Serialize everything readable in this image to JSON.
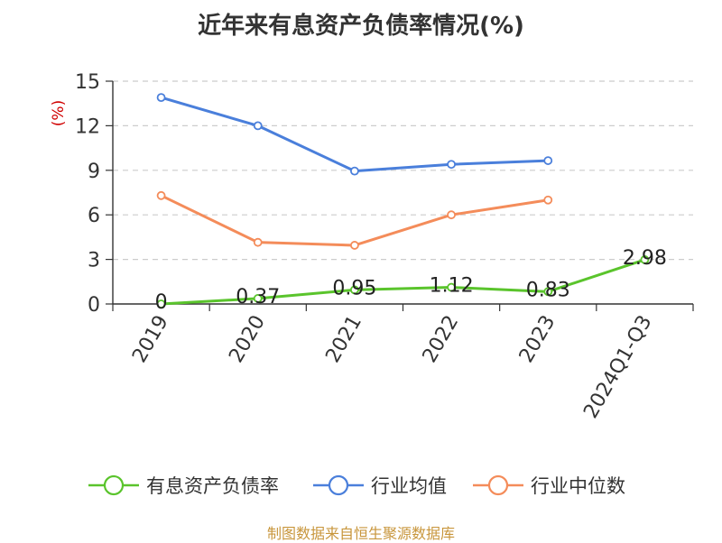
{
  "chart_data": {
    "type": "line",
    "title": "近年来有息资产负债率情况(%)",
    "ylabel": "(%)",
    "xlabel": "",
    "categories": [
      "2019",
      "2020",
      "2021",
      "2022",
      "2023",
      "2024Q1-Q3"
    ],
    "ylim": [
      0,
      15
    ],
    "yticks": [
      0,
      3,
      6,
      9,
      12,
      15
    ],
    "grid": true,
    "legend_position": "bottom",
    "series": [
      {
        "name": "有息资产负债率",
        "color": "#5ac42c",
        "values": [
          0,
          0.37,
          0.95,
          1.12,
          0.83,
          2.98
        ],
        "labels": [
          "0",
          "0.37",
          "0.95",
          "1.12",
          "0.83",
          "2.98"
        ]
      },
      {
        "name": "行业均值",
        "color": "#4a7fdb",
        "values": [
          13.9,
          12.0,
          8.95,
          9.4,
          9.65,
          null
        ]
      },
      {
        "name": "行业中位数",
        "color": "#f48c5a",
        "values": [
          7.3,
          4.15,
          3.95,
          6.0,
          7.0,
          null
        ]
      }
    ]
  },
  "footer": {
    "source": "制图数据来自恒生聚源数据库"
  }
}
